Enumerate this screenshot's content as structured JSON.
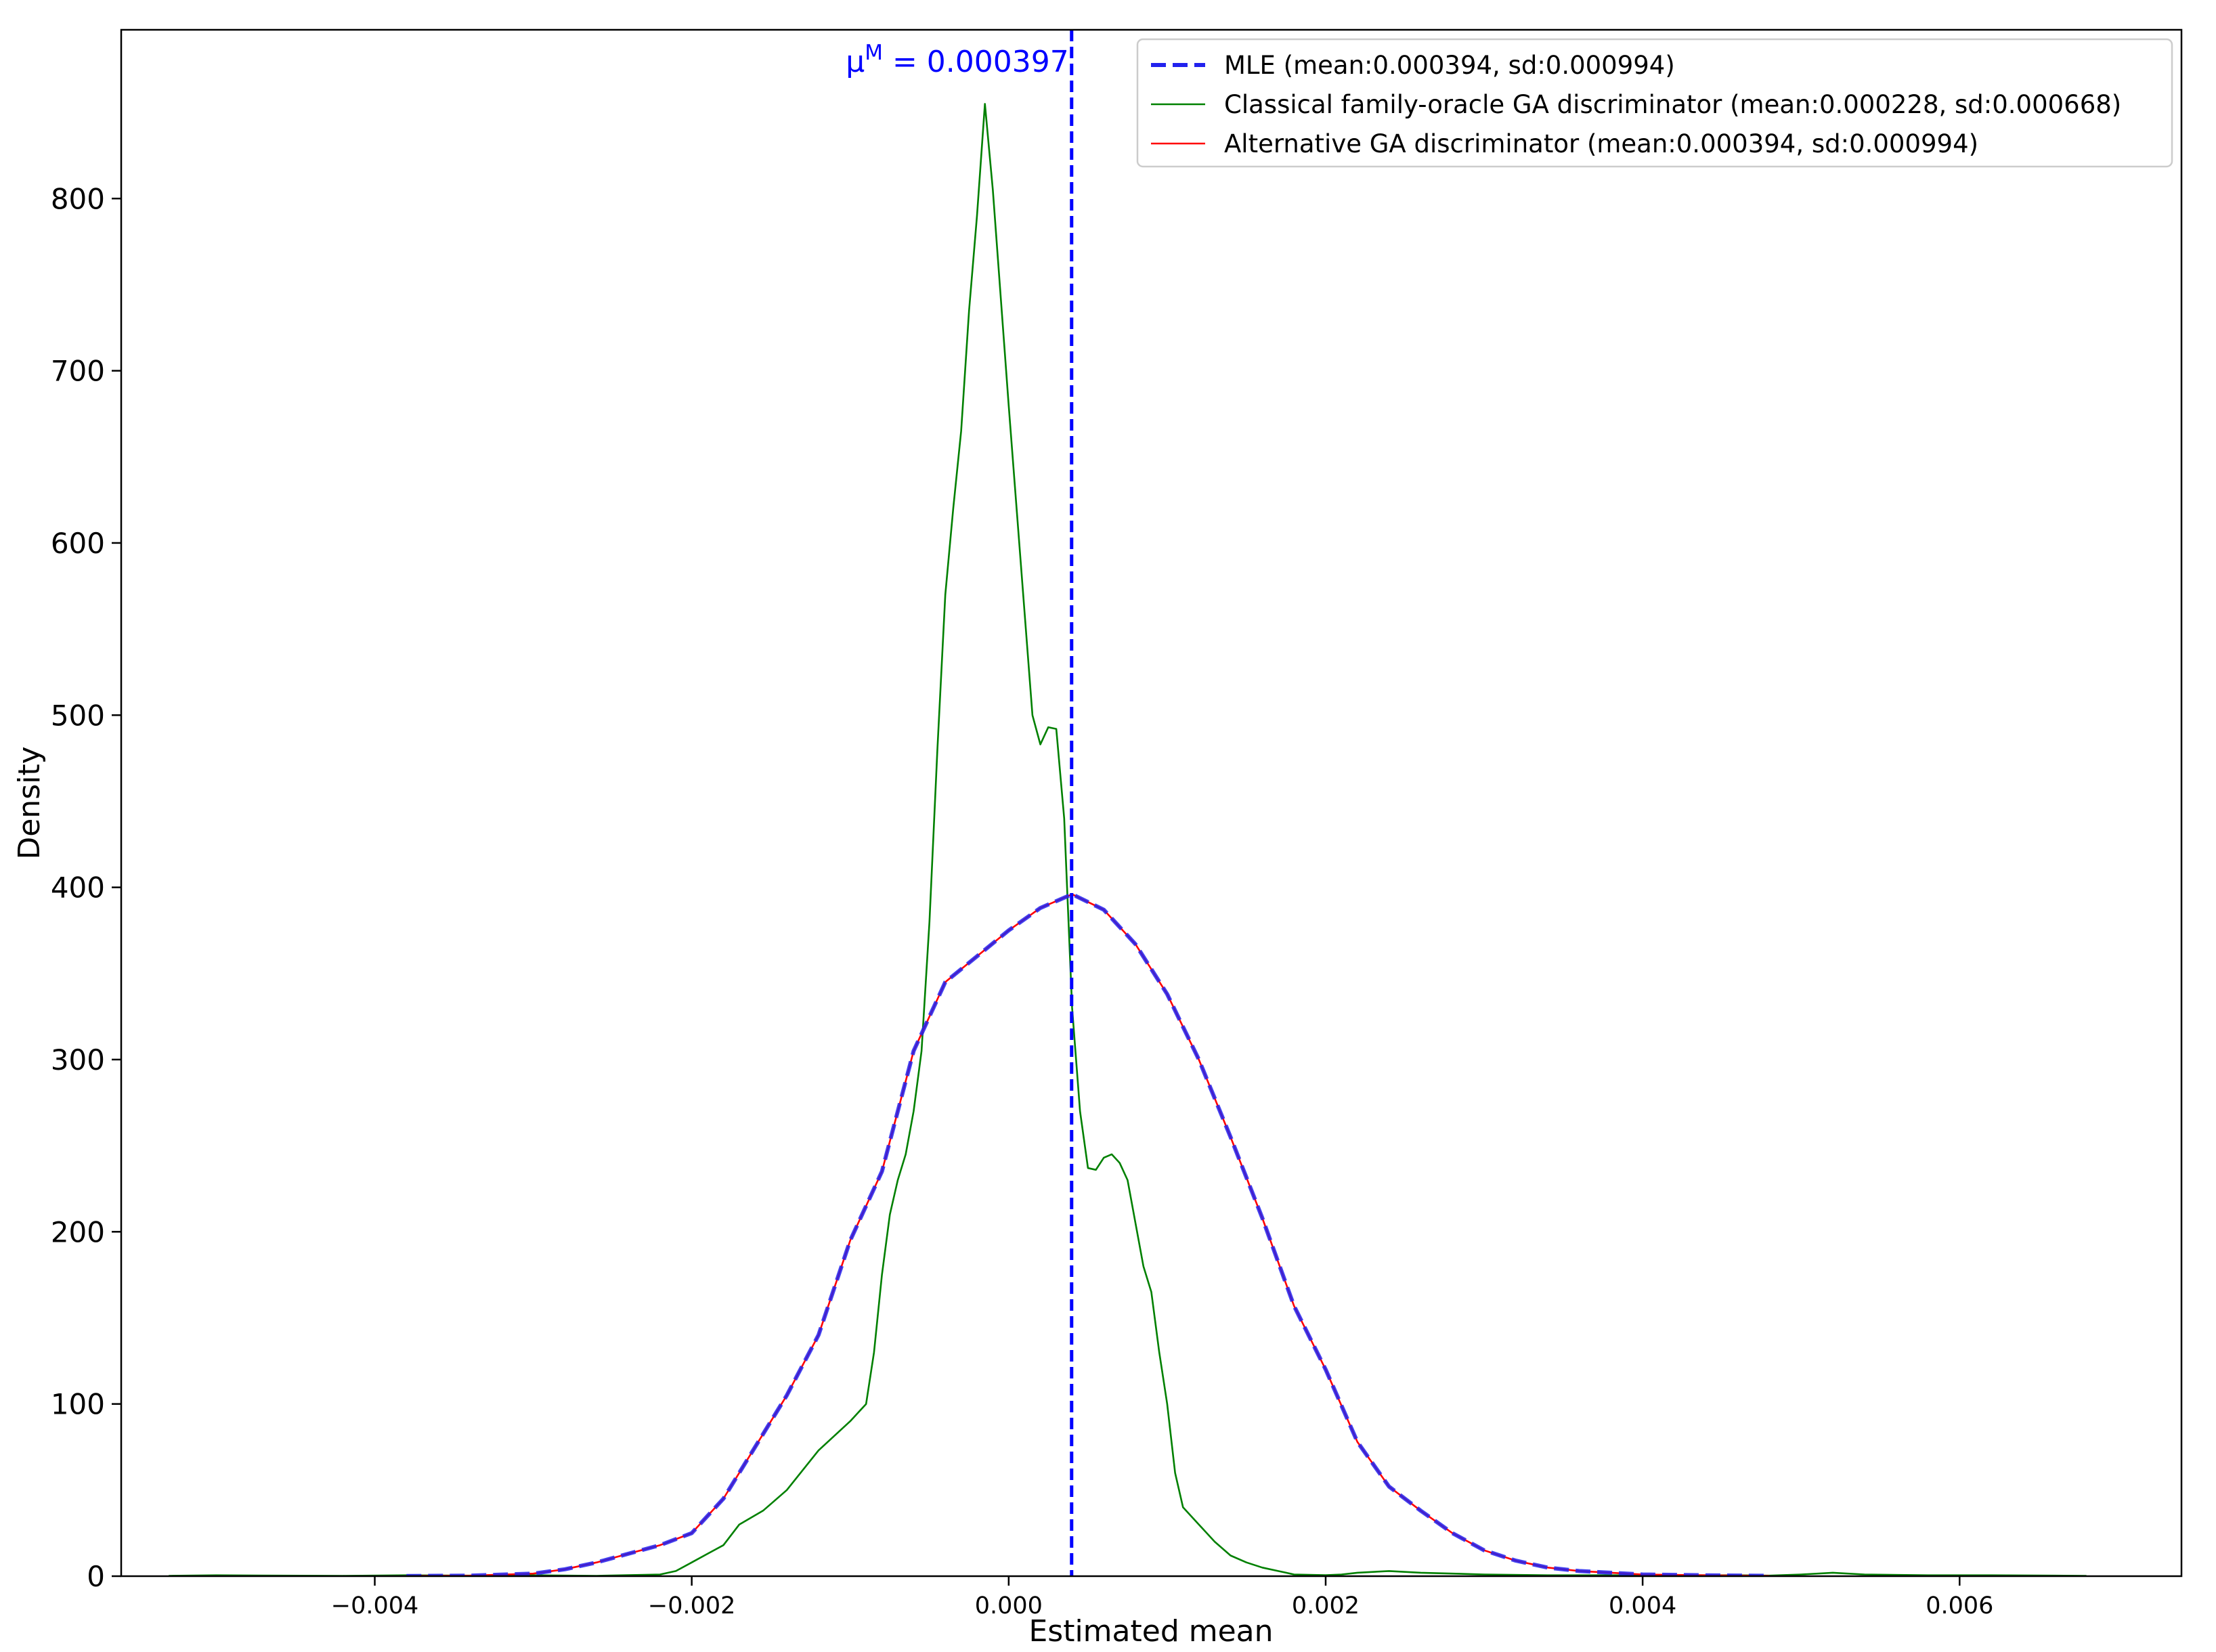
{
  "chart_data": {
    "type": "line",
    "title": "",
    "xlabel": "Estimated mean",
    "ylabel": "Density",
    "xlim": [
      -0.0056,
      0.0074
    ],
    "ylim": [
      0,
      898
    ],
    "x_ticks": [
      -0.004,
      -0.002,
      0.0,
      0.002,
      0.004,
      0.006
    ],
    "x_tick_labels": [
      "−0.004",
      "−0.002",
      "0.000",
      "0.002",
      "0.004",
      "0.006"
    ],
    "y_ticks": [
      0,
      100,
      200,
      300,
      400,
      500,
      600,
      700,
      800
    ],
    "y_tick_labels": [
      "0",
      "100",
      "200",
      "300",
      "400",
      "500",
      "600",
      "700",
      "800"
    ],
    "grid": false,
    "legend_position": "top-right",
    "annotation": {
      "symbol": "μ",
      "superscript": "M",
      "text": " = 0.000397",
      "x": 0.000397,
      "color": "#0000ff"
    },
    "series": [
      {
        "name": "MLE (mean:0.000394, sd:0.000994)",
        "color": "#2222ee",
        "style": "dashed",
        "x": [
          -0.0038,
          -0.0034,
          -0.003,
          -0.0028,
          -0.0026,
          -0.0024,
          -0.0022,
          -0.002,
          -0.0018,
          -0.0016,
          -0.0014,
          -0.0012,
          -0.001,
          -0.0008,
          -0.0006,
          -0.0004,
          -0.0002,
          0.0,
          0.0002,
          0.0004,
          0.0006,
          0.0008,
          0.001,
          0.0012,
          0.0014,
          0.0016,
          0.0018,
          0.002,
          0.0022,
          0.0024,
          0.0026,
          0.0028,
          0.003,
          0.0032,
          0.0034,
          0.0036,
          0.004,
          0.0044,
          0.0048
        ],
        "y": [
          0.1,
          0.3,
          1.5,
          4,
          8,
          13,
          18,
          25,
          45,
          75,
          105,
          140,
          195,
          235,
          305,
          345,
          360,
          375,
          388,
          396,
          387,
          367,
          338,
          300,
          255,
          208,
          157,
          120,
          78,
          52,
          38,
          25,
          15,
          9,
          5,
          3,
          1,
          0.5,
          0.2
        ]
      },
      {
        "name": "Classical family-oracle GA discriminator (mean:0.000228, sd:0.000668)",
        "color": "#008000",
        "style": "solid",
        "x": [
          -0.0053,
          -0.005,
          -0.0046,
          -0.0042,
          -0.0038,
          -0.0034,
          -0.003,
          -0.0026,
          -0.0022,
          -0.0021,
          -0.002,
          -0.0019,
          -0.0018,
          -0.0017,
          -0.00155,
          -0.0015,
          -0.0014,
          -0.0012,
          -0.001,
          -0.0009,
          -0.00085,
          -0.0008,
          -0.00075,
          -0.0007,
          -0.00065,
          -0.0006,
          -0.00055,
          -0.0005,
          -0.00045,
          -0.0004,
          -0.00035,
          -0.0003,
          -0.00025,
          -0.0002,
          -0.00015,
          -0.0001,
          0.0,
          0.0001,
          0.00015,
          0.0002,
          0.00025,
          0.0003,
          0.00035,
          0.0004,
          0.00045,
          0.0005,
          0.00055,
          0.0006,
          0.00065,
          0.0007,
          0.00075,
          0.0008,
          0.00085,
          0.0009,
          0.00095,
          0.001,
          0.00105,
          0.0011,
          0.0012,
          0.0013,
          0.0014,
          0.0015,
          0.0016,
          0.0017,
          0.00175,
          0.0018,
          0.0019,
          0.002,
          0.0021,
          0.0022,
          0.0024,
          0.0026,
          0.003,
          0.0034,
          0.0038,
          0.0042,
          0.0046,
          0.0048,
          0.005,
          0.0052,
          0.0054,
          0.0058,
          0.0062,
          0.0066,
          0.0068
        ],
        "y": [
          0.2,
          0.5,
          0.3,
          0.2,
          0.5,
          0.3,
          0.5,
          0.2,
          1,
          3,
          8,
          13,
          18,
          30,
          38,
          42,
          50,
          73,
          90,
          100,
          130,
          175,
          210,
          230,
          245,
          270,
          305,
          380,
          480,
          570,
          620,
          665,
          735,
          790,
          855,
          805,
          680,
          560,
          500,
          483,
          493,
          492,
          440,
          330,
          270,
          237,
          236,
          243,
          245,
          240,
          230,
          205,
          180,
          165,
          130,
          100,
          60,
          40,
          30,
          20,
          12,
          8,
          5,
          3,
          2,
          1,
          0.8,
          0.6,
          1,
          2,
          3,
          2,
          1,
          0.5,
          0.5,
          0.5,
          0.5,
          0.3,
          1,
          2,
          1,
          0.5,
          0.5,
          0.3,
          0.2
        ]
      },
      {
        "name": "Alternative GA discriminator (mean:0.000394, sd:0.000994)",
        "color": "#ff0000",
        "style": "solid",
        "x": [
          -0.0038,
          -0.0034,
          -0.003,
          -0.0028,
          -0.0026,
          -0.0024,
          -0.0022,
          -0.002,
          -0.0018,
          -0.0016,
          -0.0014,
          -0.0012,
          -0.001,
          -0.0008,
          -0.0006,
          -0.0004,
          -0.0002,
          0.0,
          0.0002,
          0.0004,
          0.0006,
          0.0008,
          0.001,
          0.0012,
          0.0014,
          0.0016,
          0.0018,
          0.002,
          0.0022,
          0.0024,
          0.0026,
          0.0028,
          0.003,
          0.0032,
          0.0034,
          0.0036,
          0.004,
          0.0044,
          0.0048
        ],
        "y": [
          0.1,
          0.3,
          1.5,
          4,
          8,
          13,
          18,
          25,
          45,
          75,
          105,
          140,
          195,
          235,
          305,
          345,
          360,
          375,
          388,
          396,
          387,
          367,
          338,
          300,
          255,
          208,
          157,
          120,
          78,
          52,
          38,
          25,
          15,
          9,
          5,
          3,
          1,
          0.5,
          0.2
        ]
      }
    ]
  }
}
